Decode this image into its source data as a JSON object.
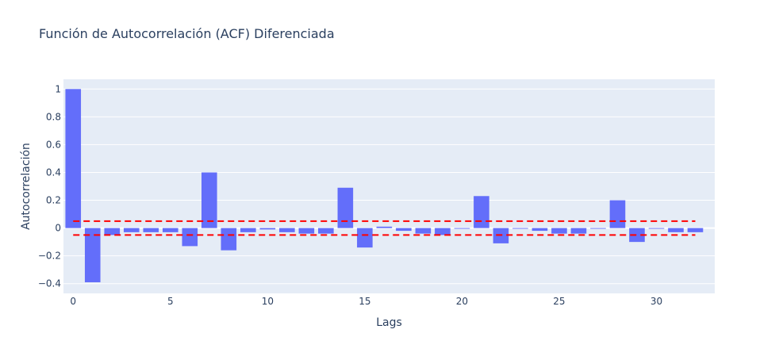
{
  "chart_data": {
    "type": "bar",
    "title": "Función de Autocorrelación (ACF) Diferenciada",
    "xlabel": "Lags",
    "ylabel": "Autocorrelación",
    "x": [
      0,
      1,
      2,
      3,
      4,
      5,
      6,
      7,
      8,
      9,
      10,
      11,
      12,
      13,
      14,
      15,
      16,
      17,
      18,
      19,
      20,
      21,
      22,
      23,
      24,
      25,
      26,
      27,
      28,
      29,
      30,
      31,
      32
    ],
    "values": [
      1.0,
      -0.39,
      -0.05,
      -0.03,
      -0.03,
      -0.03,
      -0.13,
      0.4,
      -0.16,
      -0.03,
      -0.01,
      -0.03,
      -0.04,
      -0.04,
      0.29,
      -0.14,
      0.01,
      -0.02,
      -0.04,
      -0.05,
      -0.005,
      0.23,
      -0.11,
      -0.005,
      -0.02,
      -0.04,
      -0.04,
      -0.005,
      0.2,
      -0.1,
      -0.005,
      -0.03,
      -0.03
    ],
    "xlim": [
      -0.5,
      33
    ],
    "ylim": [
      -0.47,
      1.07
    ],
    "xticks": [
      0,
      5,
      10,
      15,
      20,
      25,
      30
    ],
    "yticks": [
      -0.4,
      -0.2,
      0,
      0.2,
      0.4,
      0.6,
      0.8,
      1
    ],
    "ytick_labels": [
      "−0.4",
      "−0.2",
      "0",
      "0.2",
      "0.4",
      "0.6",
      "0.8",
      "1"
    ],
    "confidence_bounds": [
      0.05,
      -0.05
    ],
    "grid": true,
    "colors": {
      "bar": "#636efa",
      "confidence_line": "#ff0000",
      "plot_bg": "#e5ecf6",
      "grid": "#ffffff",
      "text": "#2a3f5f"
    }
  }
}
